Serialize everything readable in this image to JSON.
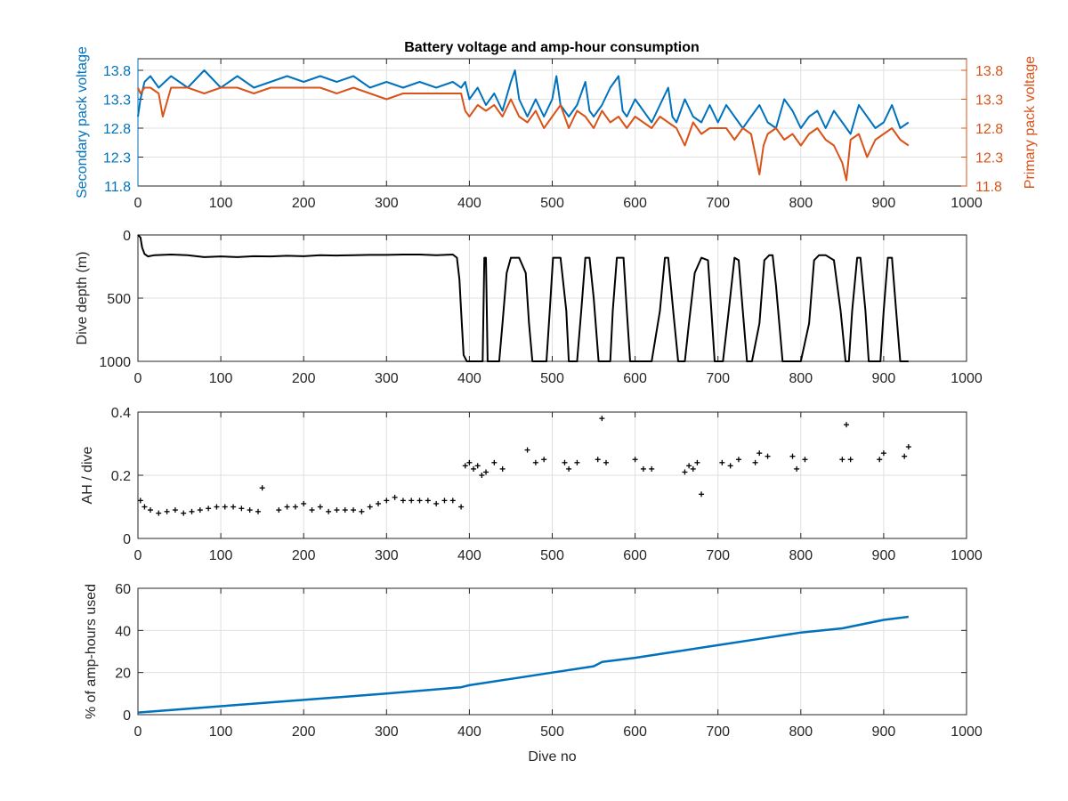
{
  "figure_title": "Battery voltage and amp-hour consumption",
  "chart_data": [
    {
      "type": "line",
      "title": "Battery voltage and amp-hour consumption",
      "xlabel": "",
      "ylabel_left": "Secondary pack voltage",
      "ylabel_right": "Primary pack voltage",
      "xlim": [
        0,
        1000
      ],
      "xticks": [
        "0",
        "100",
        "200",
        "300",
        "400",
        "500",
        "600",
        "700",
        "800",
        "900",
        "1000"
      ],
      "ylim": [
        11.8,
        14.0
      ],
      "yticks": [
        "11.8",
        "12.3",
        "12.8",
        "13.3",
        "13.8"
      ],
      "grid": true,
      "colors": {
        "left": "#0072bd",
        "right": "#d95319"
      },
      "series": [
        {
          "axis": "left",
          "x": [
            0,
            3,
            8,
            15,
            25,
            40,
            60,
            80,
            100,
            120,
            140,
            160,
            180,
            200,
            220,
            240,
            260,
            280,
            300,
            320,
            340,
            360,
            380,
            390,
            395,
            400,
            410,
            420,
            430,
            440,
            450,
            455,
            460,
            470,
            480,
            490,
            500,
            505,
            510,
            520,
            530,
            540,
            545,
            550,
            560,
            570,
            580,
            585,
            590,
            600,
            610,
            620,
            630,
            640,
            645,
            650,
            660,
            670,
            680,
            690,
            700,
            710,
            720,
            730,
            740,
            750,
            760,
            770,
            780,
            790,
            800,
            810,
            820,
            830,
            840,
            850,
            860,
            870,
            880,
            890,
            900,
            910,
            920,
            930
          ],
          "values": [
            13.0,
            13.3,
            13.6,
            13.7,
            13.5,
            13.7,
            13.5,
            13.8,
            13.5,
            13.7,
            13.5,
            13.6,
            13.7,
            13.6,
            13.7,
            13.6,
            13.7,
            13.5,
            13.6,
            13.5,
            13.6,
            13.5,
            13.6,
            13.5,
            13.6,
            13.3,
            13.5,
            13.2,
            13.4,
            13.1,
            13.6,
            13.8,
            13.3,
            13.0,
            13.3,
            13.0,
            13.3,
            13.7,
            13.2,
            13.0,
            13.2,
            13.6,
            13.1,
            13.0,
            13.2,
            13.5,
            13.7,
            13.1,
            13.0,
            13.3,
            13.1,
            12.9,
            13.2,
            13.5,
            13.0,
            12.9,
            13.3,
            13.0,
            12.9,
            13.2,
            12.9,
            13.2,
            13.0,
            12.8,
            13.0,
            13.2,
            12.9,
            12.8,
            13.3,
            13.1,
            12.8,
            13.0,
            13.1,
            12.8,
            13.1,
            12.9,
            12.7,
            13.2,
            13.0,
            12.8,
            12.9,
            13.2,
            12.8,
            12.9
          ]
        },
        {
          "axis": "right",
          "x": [
            0,
            3,
            8,
            15,
            25,
            30,
            40,
            60,
            80,
            100,
            120,
            140,
            160,
            180,
            200,
            220,
            240,
            260,
            280,
            300,
            320,
            340,
            360,
            380,
            390,
            395,
            400,
            410,
            420,
            430,
            440,
            450,
            460,
            470,
            480,
            490,
            500,
            510,
            520,
            530,
            540,
            550,
            560,
            570,
            580,
            590,
            600,
            610,
            620,
            630,
            640,
            650,
            660,
            670,
            680,
            690,
            700,
            710,
            720,
            730,
            740,
            750,
            755,
            760,
            770,
            780,
            790,
            800,
            810,
            820,
            830,
            840,
            850,
            855,
            860,
            870,
            880,
            890,
            900,
            910,
            920,
            930
          ],
          "values": [
            13.5,
            13.4,
            13.5,
            13.5,
            13.4,
            13.0,
            13.5,
            13.5,
            13.4,
            13.5,
            13.5,
            13.4,
            13.5,
            13.5,
            13.5,
            13.5,
            13.4,
            13.5,
            13.4,
            13.3,
            13.4,
            13.4,
            13.4,
            13.4,
            13.4,
            13.1,
            13.0,
            13.2,
            13.1,
            13.2,
            13.0,
            13.3,
            13.0,
            12.9,
            13.1,
            12.8,
            13.0,
            13.2,
            12.8,
            13.1,
            13.0,
            12.8,
            13.1,
            12.9,
            13.0,
            12.8,
            13.0,
            12.9,
            12.8,
            13.0,
            12.9,
            12.8,
            12.5,
            12.9,
            12.7,
            12.8,
            12.8,
            12.8,
            12.6,
            12.8,
            12.7,
            12.0,
            12.5,
            12.7,
            12.8,
            12.6,
            12.7,
            12.5,
            12.7,
            12.8,
            12.6,
            12.5,
            12.2,
            11.9,
            12.6,
            12.7,
            12.3,
            12.6,
            12.7,
            12.8,
            12.6,
            12.5
          ]
        }
      ]
    },
    {
      "type": "line",
      "xlabel": "",
      "ylabel": "Dive depth (m)",
      "xlim": [
        0,
        1000
      ],
      "xticks": [
        "0",
        "100",
        "200",
        "300",
        "400",
        "500",
        "600",
        "700",
        "800",
        "900",
        "1000"
      ],
      "ylim": [
        0,
        1000
      ],
      "y_reversed": true,
      "yticks": [
        "0",
        "500",
        "1000"
      ],
      "grid": true,
      "color": "#000000",
      "series": [
        {
          "x": [
            0,
            3,
            5,
            8,
            12,
            20,
            40,
            60,
            80,
            100,
            120,
            140,
            160,
            180,
            200,
            220,
            240,
            260,
            280,
            300,
            320,
            340,
            360,
            380,
            385,
            388,
            390,
            393,
            397,
            400,
            410,
            416,
            418,
            420,
            422,
            430,
            436,
            440,
            445,
            450,
            460,
            468,
            472,
            476,
            485,
            493,
            497,
            501,
            510,
            517,
            520,
            527,
            530,
            535,
            540,
            545,
            550,
            556,
            565,
            570,
            573,
            578,
            586,
            590,
            594,
            598,
            605,
            612,
            620,
            630,
            636,
            640,
            646,
            652,
            660,
            665,
            672,
            680,
            688,
            692,
            696,
            700,
            706,
            713,
            720,
            725,
            730,
            735,
            741,
            750,
            756,
            762,
            766,
            770,
            778,
            785,
            791,
            800,
            810,
            816,
            822,
            830,
            840,
            848,
            854,
            858,
            862,
            868,
            872,
            878,
            882,
            890,
            896,
            900,
            905,
            910,
            915,
            920,
            927,
            930
          ],
          "values": [
            0,
            20,
            100,
            150,
            170,
            160,
            155,
            160,
            175,
            170,
            175,
            168,
            170,
            165,
            168,
            160,
            163,
            160,
            158,
            158,
            155,
            155,
            160,
            155,
            180,
            350,
            600,
            950,
            1000,
            1000,
            1000,
            1000,
            180,
            180,
            1000,
            1000,
            1000,
            700,
            300,
            180,
            180,
            300,
            700,
            1000,
            1000,
            1000,
            600,
            180,
            180,
            600,
            1000,
            1000,
            1000,
            600,
            180,
            180,
            500,
            1000,
            1000,
            1000,
            600,
            180,
            180,
            600,
            1000,
            1000,
            1000,
            1000,
            1000,
            600,
            180,
            180,
            600,
            1000,
            1000,
            700,
            300,
            180,
            200,
            600,
            1000,
            1000,
            1000,
            600,
            180,
            200,
            600,
            1000,
            1000,
            700,
            200,
            160,
            160,
            400,
            1000,
            1000,
            1000,
            1000,
            700,
            200,
            160,
            160,
            200,
            600,
            1000,
            1000,
            600,
            180,
            180,
            600,
            1000,
            1000,
            1000,
            600,
            180,
            180,
            600,
            1000,
            1000,
            1000
          ]
        }
      ]
    },
    {
      "type": "scatter",
      "xlabel": "",
      "ylabel": "AH / dive",
      "xlim": [
        0,
        1000
      ],
      "xticks": [
        "0",
        "100",
        "200",
        "300",
        "400",
        "500",
        "600",
        "700",
        "800",
        "900",
        "1000"
      ],
      "ylim": [
        0,
        0.4
      ],
      "yticks": [
        "0",
        "0.2",
        "0.4"
      ],
      "grid": true,
      "color": "#000000",
      "series": [
        {
          "x": [
            3,
            8,
            15,
            25,
            35,
            45,
            55,
            65,
            75,
            85,
            95,
            105,
            115,
            125,
            135,
            145,
            150,
            170,
            180,
            190,
            200,
            210,
            220,
            230,
            240,
            250,
            260,
            270,
            280,
            290,
            300,
            310,
            320,
            330,
            340,
            350,
            360,
            370,
            380,
            390,
            395,
            400,
            405,
            410,
            415,
            420,
            430,
            440,
            470,
            480,
            490,
            515,
            520,
            530,
            555,
            560,
            565,
            600,
            610,
            620,
            660,
            665,
            670,
            675,
            680,
            705,
            715,
            725,
            745,
            750,
            760,
            790,
            795,
            805,
            850,
            855,
            860,
            895,
            900,
            925,
            930
          ],
          "values": [
            0.12,
            0.1,
            0.09,
            0.08,
            0.085,
            0.09,
            0.08,
            0.085,
            0.09,
            0.095,
            0.1,
            0.1,
            0.1,
            0.095,
            0.09,
            0.085,
            0.16,
            0.09,
            0.1,
            0.1,
            0.11,
            0.09,
            0.1,
            0.085,
            0.09,
            0.09,
            0.09,
            0.085,
            0.1,
            0.11,
            0.12,
            0.13,
            0.12,
            0.12,
            0.12,
            0.12,
            0.11,
            0.12,
            0.12,
            0.1,
            0.23,
            0.24,
            0.22,
            0.23,
            0.2,
            0.21,
            0.24,
            0.22,
            0.28,
            0.24,
            0.25,
            0.24,
            0.22,
            0.24,
            0.25,
            0.38,
            0.24,
            0.25,
            0.22,
            0.22,
            0.21,
            0.23,
            0.22,
            0.24,
            0.14,
            0.24,
            0.23,
            0.25,
            0.24,
            0.27,
            0.26,
            0.26,
            0.22,
            0.25,
            0.25,
            0.36,
            0.25,
            0.25,
            0.27,
            0.26,
            0.29
          ]
        }
      ]
    },
    {
      "type": "line",
      "xlabel": "Dive no",
      "ylabel": "% of amp-hours used",
      "xlim": [
        0,
        1000
      ],
      "xticks": [
        "0",
        "100",
        "200",
        "300",
        "400",
        "500",
        "600",
        "700",
        "800",
        "900",
        "1000"
      ],
      "ylim": [
        0,
        60
      ],
      "yticks": [
        "0",
        "20",
        "40",
        "60"
      ],
      "grid": true,
      "color": "#0072bd",
      "series": [
        {
          "x": [
            0,
            100,
            200,
            300,
            390,
            400,
            450,
            500,
            550,
            560,
            600,
            650,
            700,
            750,
            800,
            850,
            900,
            930
          ],
          "values": [
            1,
            4,
            7,
            10,
            13,
            14,
            17,
            20,
            23,
            25,
            27,
            30,
            33,
            36,
            39,
            41,
            45,
            46.5
          ]
        }
      ]
    }
  ]
}
